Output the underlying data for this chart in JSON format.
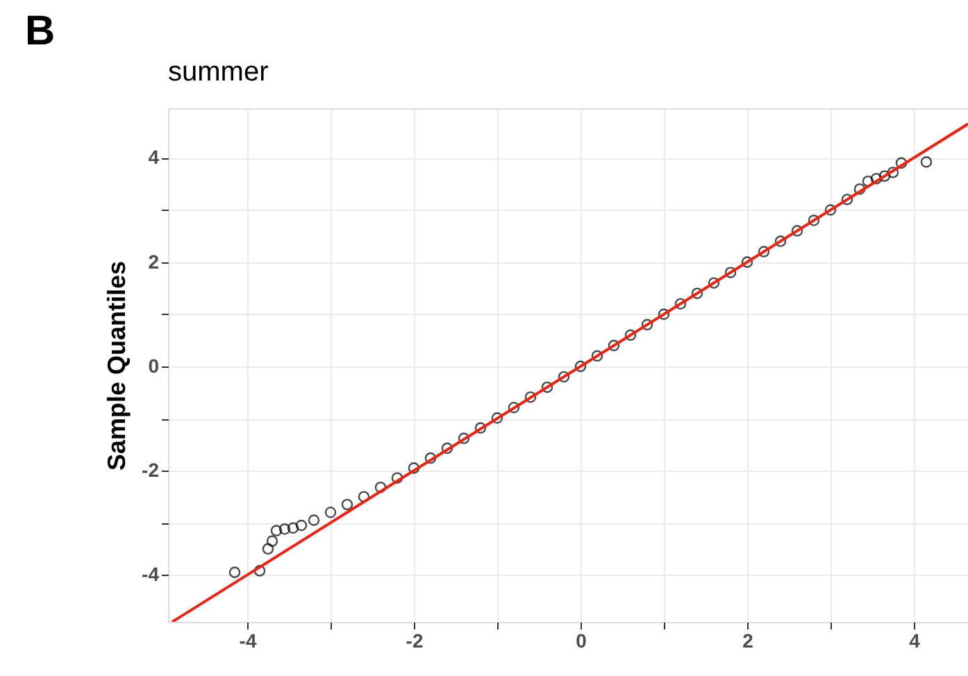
{
  "chart_data": {
    "type": "scatter",
    "title": "summer",
    "ylabel": "Sample Quantiles",
    "annotations": [
      "B"
    ],
    "xlim": [
      -4.95,
      4.65
    ],
    "ylim": [
      -4.9,
      4.95
    ],
    "xticks": [
      {
        "value": -4,
        "label": "-4"
      },
      {
        "value": -3,
        "label": null
      },
      {
        "value": -2,
        "label": "-2"
      },
      {
        "value": -1,
        "label": null
      },
      {
        "value": 0,
        "label": "0"
      },
      {
        "value": 1,
        "label": null
      },
      {
        "value": 2,
        "label": "2"
      },
      {
        "value": 3,
        "label": null
      },
      {
        "value": 4,
        "label": "4"
      }
    ],
    "yticks": [
      {
        "value": -4,
        "label": "-4"
      },
      {
        "value": -3,
        "label": null
      },
      {
        "value": -2,
        "label": "-2"
      },
      {
        "value": -1,
        "label": null
      },
      {
        "value": 0,
        "label": "0"
      },
      {
        "value": 1,
        "label": null
      },
      {
        "value": 2,
        "label": "2"
      },
      {
        "value": 3,
        "label": null
      },
      {
        "value": 4,
        "label": "4"
      }
    ],
    "grid": true,
    "series": [
      {
        "marker": "circle",
        "color": "#000000",
        "x": [
          -4.15,
          -3.85,
          -3.75,
          -3.7,
          -3.65,
          -3.55,
          -3.45,
          -3.35,
          -3.2,
          -3.0,
          -2.8,
          -2.6,
          -2.4,
          -2.2,
          -2.0,
          -1.8,
          -1.6,
          -1.4,
          -1.2,
          -1.0,
          -0.8,
          -0.6,
          -0.4,
          -0.2,
          0.0,
          0.2,
          0.4,
          0.6,
          0.8,
          1.0,
          1.2,
          1.4,
          1.6,
          1.8,
          2.0,
          2.2,
          2.4,
          2.6,
          2.8,
          3.0,
          3.2,
          3.35,
          3.45,
          3.55,
          3.65,
          3.75,
          3.85,
          4.15
        ],
        "values": [
          -3.95,
          -3.92,
          -3.5,
          -3.35,
          -3.15,
          -3.12,
          -3.1,
          -3.05,
          -2.95,
          -2.8,
          -2.65,
          -2.5,
          -2.32,
          -2.14,
          -1.95,
          -1.76,
          -1.57,
          -1.38,
          -1.18,
          -0.99,
          -0.79,
          -0.59,
          -0.4,
          -0.2,
          0.0,
          0.2,
          0.4,
          0.6,
          0.8,
          1.0,
          1.2,
          1.4,
          1.6,
          1.8,
          2.0,
          2.2,
          2.4,
          2.6,
          2.8,
          3.0,
          3.2,
          3.4,
          3.55,
          3.6,
          3.65,
          3.72,
          3.9,
          3.92
        ]
      },
      {
        "type": "line",
        "color": "#ee2211",
        "x": [
          -4.9,
          4.65
        ],
        "values": [
          -4.9,
          4.65
        ]
      }
    ]
  }
}
